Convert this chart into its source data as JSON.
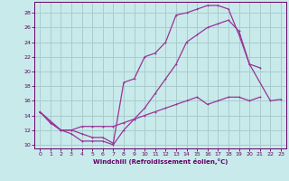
{
  "background_color": "#c8eaea",
  "grid_color": "#aacccc",
  "line_color": "#993399",
  "xlabel": "Windchill (Refroidissement éolien,°C)",
  "xlabel_color": "#660066",
  "tick_color": "#660066",
  "xlim": [
    -0.5,
    23.5
  ],
  "ylim": [
    9.5,
    29.5
  ],
  "yticks": [
    10,
    12,
    14,
    16,
    18,
    20,
    22,
    24,
    26,
    28
  ],
  "xticks": [
    0,
    1,
    2,
    3,
    4,
    5,
    6,
    7,
    8,
    9,
    10,
    11,
    12,
    13,
    14,
    15,
    16,
    17,
    18,
    19,
    20,
    21,
    22,
    23
  ],
  "curve1_x": [
    0,
    1,
    2,
    3,
    4,
    5,
    6,
    7,
    8,
    9,
    10,
    11,
    12,
    13,
    14,
    15,
    16,
    17,
    18,
    19,
    20,
    21
  ],
  "curve1_y": [
    14.5,
    13.0,
    12.0,
    11.5,
    10.5,
    10.5,
    10.5,
    10.0,
    12.0,
    13.5,
    15.0,
    17.0,
    19.0,
    21.0,
    24.0,
    25.0,
    26.0,
    26.5,
    27.0,
    25.5,
    21.0,
    20.5
  ],
  "curve2_x": [
    0,
    2,
    3,
    4,
    5,
    6,
    7,
    8,
    9,
    10,
    11,
    12,
    13,
    14,
    15,
    16,
    17,
    18,
    19,
    20,
    22,
    23
  ],
  "curve2_y": [
    14.5,
    12.0,
    12.0,
    11.5,
    11.0,
    11.0,
    10.2,
    18.5,
    19.0,
    22.0,
    22.5,
    24.0,
    27.7,
    28.0,
    28.5,
    29.0,
    29.0,
    28.5,
    25.0,
    21.0,
    16.0,
    16.2
  ],
  "curve3_x": [
    0,
    1,
    2,
    3,
    4,
    5,
    6,
    7,
    8,
    9,
    10,
    11,
    12,
    13,
    14,
    15,
    16,
    17,
    18,
    19,
    20,
    21,
    22,
    23
  ],
  "curve3_y": [
    14.5,
    13.0,
    12.0,
    12.0,
    12.5,
    12.5,
    12.5,
    12.5,
    13.0,
    13.5,
    14.0,
    14.5,
    15.0,
    15.5,
    16.0,
    16.5,
    15.5,
    16.0,
    16.5,
    16.5,
    16.0,
    16.5,
    null,
    null
  ]
}
